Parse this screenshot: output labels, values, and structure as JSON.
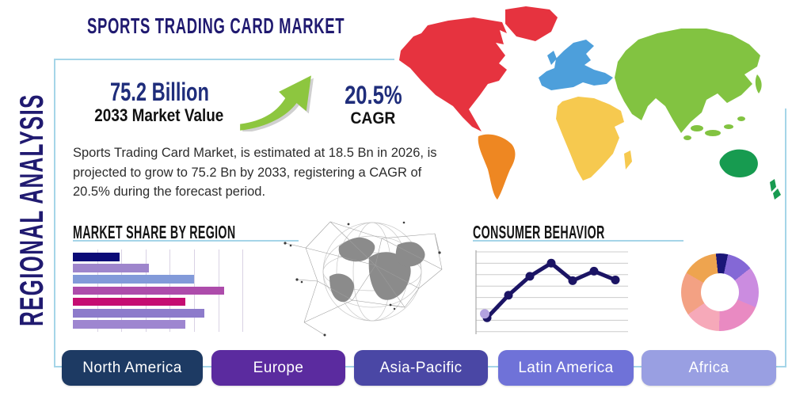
{
  "header": {
    "title": "SPORTS TRADING CARD MARKET",
    "side_label": "REGIONAL ANALYSIS"
  },
  "stats": {
    "value": "75.2 Billion",
    "value_caption": "2033 Market Value",
    "cagr": "20.5%",
    "cagr_caption": "CAGR",
    "description": "Sports Trading Card Market, is estimated at 18.5 Bn in 2026, is projected to grow to 75.2 Bn by 2033, registering a CAGR of 20.5% during the forecast period.",
    "arrow_color": "#8dc63f"
  },
  "colors": {
    "accent_navy": "#201a70",
    "frame_blue": "#a5d5e8",
    "text_dark": "#141414"
  },
  "region_buttons": [
    {
      "label": "North America",
      "color": "#1d3a63"
    },
    {
      "label": "Europe",
      "color": "#5b2b9f"
    },
    {
      "label": "Asia-Pacific",
      "color": "#4a47a5"
    },
    {
      "label": "Latin America",
      "color": "#6f72d8"
    },
    {
      "label": "Africa",
      "color": "#999fe2"
    }
  ],
  "map": {
    "continents": [
      {
        "name": "North America",
        "color": "#e6333f"
      },
      {
        "name": "South America",
        "color": "#ee8722"
      },
      {
        "name": "Europe",
        "color": "#4d9fdb"
      },
      {
        "name": "Africa",
        "color": "#f6c94f"
      },
      {
        "name": "Asia",
        "color": "#82c341"
      },
      {
        "name": "Oceania",
        "color": "#179b50"
      }
    ]
  },
  "chart_data": [
    {
      "type": "bar",
      "title": "MARKET SHARE BY REGION",
      "orientation": "horizontal",
      "categories": [
        "",
        "",
        "",
        "",
        "",
        "",
        ""
      ],
      "values": [
        27,
        44,
        70,
        87,
        65,
        76,
        65
      ],
      "value_unit": "percent of axis max",
      "xlim": [
        0,
        100
      ],
      "grid": true,
      "bar_colors": [
        "#0b0b77",
        "#9e85cc",
        "#829ad9",
        "#ad4cab",
        "#c50d72",
        "#8d7bcb",
        "#9e86d0"
      ]
    },
    {
      "type": "line",
      "title": "CONSUMER BEHAVIOR",
      "x": [
        1,
        2,
        3,
        4,
        5,
        6,
        7
      ],
      "values": [
        16,
        47,
        73,
        91,
        67,
        80,
        68
      ],
      "ylim": [
        0,
        100
      ],
      "grid": true,
      "line_color": "#1b1464",
      "marker_color": "#1b1464",
      "first_marker_highlight_color": "#b3a2e0",
      "grid_color": "#cccccc"
    },
    {
      "type": "pie",
      "variant": "donut",
      "values": [
        5,
        11,
        17,
        19,
        15,
        18,
        15
      ],
      "start_angle_deg": -6,
      "colors": [
        "#1a1678",
        "#8468d6",
        "#cb8ce0",
        "#e98ac2",
        "#f6a9b9",
        "#f3a183",
        "#eea44f"
      ]
    }
  ]
}
